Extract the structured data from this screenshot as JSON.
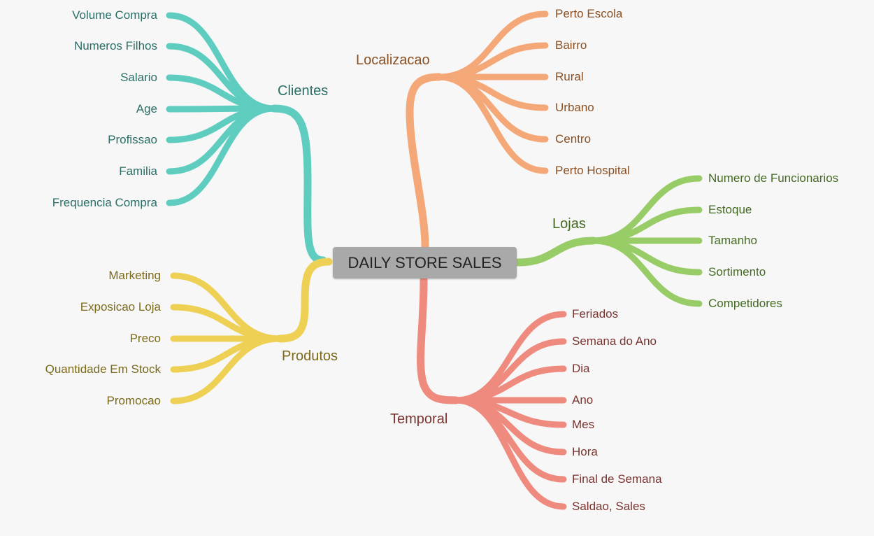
{
  "central": {
    "label": "DAILY STORE SALES"
  },
  "colors": {
    "clientes": "#5ecdc0",
    "produtos": "#edd054",
    "localizacao": "#f5a877",
    "lojas": "#97cc66",
    "temporal": "#ef8a7e",
    "central_bg": "#a9a9a9",
    "background": "#f7f7f7"
  },
  "branches": {
    "clientes": {
      "label": "Clientes",
      "children": [
        "Volume Compra",
        "Numeros Filhos",
        "Salario",
        "Age",
        "Profissao",
        "Familia",
        "Frequencia Compra"
      ]
    },
    "produtos": {
      "label": "Produtos",
      "children": [
        "Marketing",
        "Exposicao Loja",
        "Preco",
        "Quantidade Em Stock",
        "Promocao"
      ]
    },
    "localizacao": {
      "label": "Localizacao",
      "children": [
        "Perto Escola",
        "Bairro",
        "Rural",
        "Urbano",
        "Centro",
        "Perto Hospital"
      ]
    },
    "lojas": {
      "label": "Lojas",
      "children": [
        "Numero de Funcionarios",
        "Estoque",
        "Tamanho",
        "Sortimento",
        "Competidores"
      ]
    },
    "temporal": {
      "label": "Temporal",
      "children": [
        "Feriados",
        "Semana do Ano",
        "Dia",
        "Ano",
        "Mes",
        "Hora",
        "Final de Semana",
        "Saldao, Sales"
      ]
    }
  }
}
